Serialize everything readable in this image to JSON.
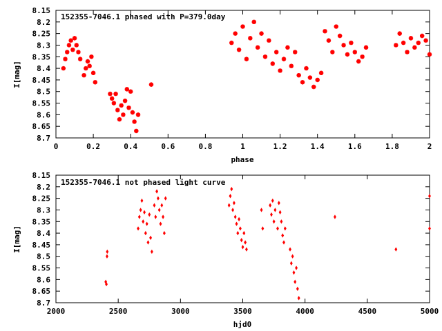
{
  "chart_data": [
    {
      "type": "scatter",
      "title": "152355-7046.1 phased with P=379.0day",
      "xlabel": "phase",
      "ylabel": "I[mag]",
      "xlim": [
        0,
        2
      ],
      "ylim": [
        8.7,
        8.15
      ],
      "y_inverted": true,
      "x_ticks": [
        "0",
        "0.2",
        "0.4",
        "0.6",
        "0.8",
        "1",
        "1.2",
        "1.4",
        "1.6",
        "1.8",
        "2"
      ],
      "y_ticks": [
        "8.15",
        "8.2",
        "8.25",
        "8.3",
        "8.35",
        "8.4",
        "8.45",
        "8.5",
        "8.55",
        "8.6",
        "8.65",
        "8.7"
      ],
      "grid": false,
      "marker": "star",
      "color": "#ff0000",
      "series": [
        {
          "x": [
            0.04,
            0.05,
            0.06,
            0.07,
            0.08,
            0.09,
            0.1,
            0.11,
            0.12,
            0.13,
            0.15,
            0.16,
            0.17,
            0.18,
            0.19,
            0.2,
            0.21,
            0.29,
            0.3,
            0.31,
            0.32,
            0.33,
            0.34,
            0.35,
            0.36,
            0.37,
            0.38,
            0.39,
            0.4,
            0.41,
            0.42,
            0.43,
            0.44,
            0.51,
            0.94,
            0.96,
            0.98,
            1.0,
            1.02,
            1.04,
            1.06,
            1.08,
            1.1,
            1.12,
            1.14,
            1.16,
            1.18,
            1.2,
            1.22,
            1.24,
            1.26,
            1.28,
            1.3,
            1.32,
            1.34,
            1.36,
            1.38,
            1.4,
            1.42,
            1.44,
            1.46,
            1.48,
            1.5,
            1.52,
            1.54,
            1.56,
            1.58,
            1.6,
            1.62,
            1.64,
            1.66,
            1.82,
            1.84,
            1.86,
            1.88,
            1.9,
            1.92,
            1.94,
            1.96,
            1.98,
            2.0
          ],
          "y": [
            8.4,
            8.36,
            8.33,
            8.3,
            8.28,
            8.32,
            8.27,
            8.3,
            8.33,
            8.36,
            8.43,
            8.4,
            8.37,
            8.39,
            8.35,
            8.42,
            8.46,
            8.51,
            8.53,
            8.55,
            8.51,
            8.58,
            8.62,
            8.56,
            8.6,
            8.54,
            8.49,
            8.57,
            8.5,
            8.59,
            8.63,
            8.67,
            8.6,
            8.47,
            8.29,
            8.25,
            8.32,
            8.22,
            8.36,
            8.27,
            8.2,
            8.31,
            8.25,
            8.35,
            8.28,
            8.38,
            8.33,
            8.41,
            8.36,
            8.31,
            8.39,
            8.33,
            8.43,
            8.46,
            8.4,
            8.44,
            8.48,
            8.45,
            8.42,
            8.24,
            8.28,
            8.33,
            8.22,
            8.26,
            8.3,
            8.34,
            8.29,
            8.33,
            8.37,
            8.35,
            8.31,
            8.3,
            8.25,
            8.29,
            8.33,
            8.27,
            8.31,
            8.29,
            8.26,
            8.28,
            8.34
          ]
        }
      ]
    },
    {
      "type": "scatter",
      "title": "152355-7046.1 not phased light curve",
      "xlabel": "hjd0",
      "ylabel": "I[mag]",
      "xlim": [
        2000,
        5000
      ],
      "ylim": [
        8.7,
        8.15
      ],
      "y_inverted": true,
      "x_ticks": [
        "2000",
        "2500",
        "3000",
        "3500",
        "4000",
        "4500",
        "5000"
      ],
      "y_ticks": [
        "8.15",
        "8.2",
        "8.25",
        "8.3",
        "8.35",
        "8.4",
        "8.45",
        "8.5",
        "8.55",
        "8.6",
        "8.65",
        "8.7"
      ],
      "grid": false,
      "marker": "diamond",
      "color": "#ff0000",
      "series": [
        {
          "x": [
            2400,
            2405,
            2410,
            2412,
            2660,
            2670,
            2680,
            2690,
            2700,
            2710,
            2720,
            2730,
            2740,
            2750,
            2760,
            2770,
            2790,
            2800,
            2810,
            2820,
            2830,
            2840,
            2850,
            2860,
            2870,
            2880,
            3390,
            3400,
            3410,
            3420,
            3430,
            3440,
            3450,
            3460,
            3470,
            3480,
            3490,
            3500,
            3510,
            3520,
            3530,
            3650,
            3660,
            3720,
            3730,
            3740,
            3750,
            3760,
            3780,
            3790,
            3800,
            3810,
            3820,
            3830,
            3840,
            3880,
            3890,
            3900,
            3910,
            3920,
            3930,
            3940,
            3950,
            4240,
            4730,
            5000,
            5000
          ],
          "y": [
            8.61,
            8.62,
            8.5,
            8.48,
            8.38,
            8.33,
            8.3,
            8.26,
            8.35,
            8.31,
            8.4,
            8.36,
            8.44,
            8.32,
            8.42,
            8.48,
            8.28,
            8.33,
            8.22,
            8.25,
            8.3,
            8.36,
            8.28,
            8.33,
            8.4,
            8.25,
            8.28,
            8.24,
            8.21,
            8.3,
            8.27,
            8.33,
            8.36,
            8.4,
            8.34,
            8.38,
            8.43,
            8.46,
            8.4,
            8.44,
            8.47,
            8.3,
            8.38,
            8.28,
            8.32,
            8.26,
            8.35,
            8.3,
            8.38,
            8.27,
            8.31,
            8.35,
            8.41,
            8.44,
            8.38,
            8.47,
            8.53,
            8.5,
            8.57,
            8.61,
            8.55,
            8.64,
            8.68,
            8.33,
            8.47,
            8.24,
            8.38
          ]
        }
      ]
    }
  ]
}
